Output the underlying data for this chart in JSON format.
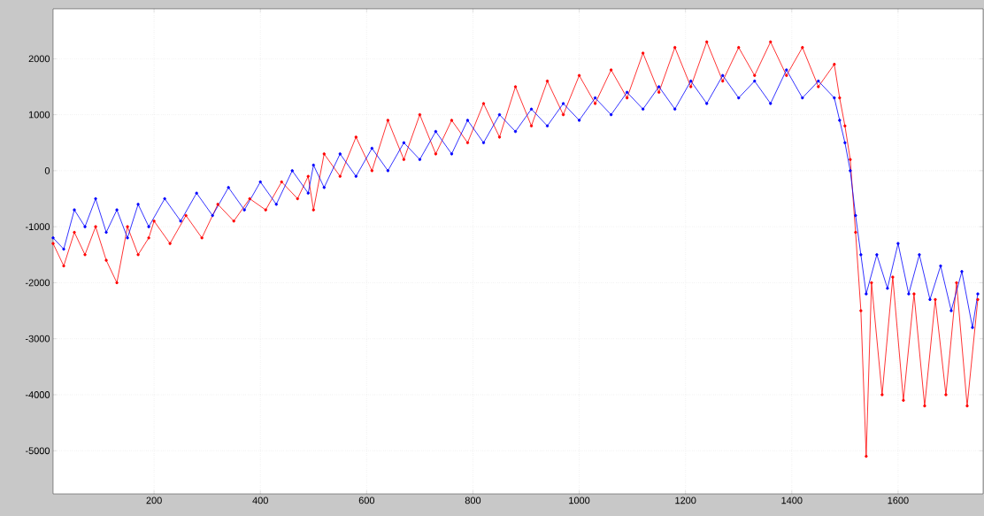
{
  "chart_data": {
    "type": "line",
    "grid": true,
    "marker": "circle",
    "line_style": "solid",
    "xlim": [
      10,
      1760
    ],
    "ylim": [
      -5770,
      2890
    ],
    "xticks": [
      200,
      400,
      600,
      800,
      1000,
      1200,
      1400,
      1600
    ],
    "yticks": [
      -5000,
      -4000,
      -3000,
      -2000,
      -1000,
      0,
      1000,
      2000
    ],
    "x": [
      10,
      30,
      50,
      70,
      90,
      110,
      130,
      150,
      170,
      190,
      200,
      230,
      260,
      290,
      320,
      350,
      380,
      410,
      440,
      470,
      490,
      500,
      520,
      550,
      580,
      610,
      640,
      670,
      700,
      730,
      760,
      790,
      820,
      850,
      880,
      910,
      940,
      970,
      1000,
      1030,
      1060,
      1090,
      1120,
      1150,
      1180,
      1210,
      1240,
      1270,
      1300,
      1330,
      1360,
      1390,
      1420,
      1450,
      1480,
      1490,
      1500,
      1510,
      1520,
      1530,
      1540,
      1550,
      1570,
      1590,
      1610,
      1630,
      1650,
      1670,
      1690,
      1710,
      1730,
      1750
    ],
    "series": [
      {
        "color": "#ff0000",
        "values": [
          -1300,
          -1700,
          -1100,
          -1500,
          -1000,
          -1600,
          -2000,
          -1000,
          -1500,
          -1200,
          -900,
          -1300,
          -800,
          -1200,
          -600,
          -900,
          -500,
          -700,
          -200,
          -500,
          -100,
          -700,
          300,
          -100,
          600,
          0,
          900,
          200,
          1000,
          300,
          900,
          500,
          1200,
          600,
          1500,
          800,
          1600,
          1000,
          1700,
          1200,
          1800,
          1300,
          2100,
          1400,
          2200,
          1500,
          2300,
          1600,
          2200,
          1700,
          2300,
          1700,
          2200,
          1500,
          1900,
          1300,
          800,
          200,
          -1100,
          -2500,
          -5100,
          -2000,
          -4000,
          -1900,
          -4100,
          -2200,
          -4200,
          -2300,
          -4000,
          -2000,
          -4200,
          -2300
        ]
      },
      {
        "color": "#0000ff",
        "x": [
          10,
          30,
          50,
          70,
          90,
          110,
          130,
          150,
          170,
          190,
          220,
          250,
          280,
          310,
          340,
          370,
          400,
          430,
          460,
          490,
          500,
          520,
          550,
          580,
          610,
          640,
          670,
          700,
          730,
          760,
          790,
          820,
          850,
          880,
          910,
          940,
          970,
          1000,
          1030,
          1060,
          1090,
          1120,
          1150,
          1180,
          1210,
          1240,
          1270,
          1300,
          1330,
          1360,
          1390,
          1420,
          1450,
          1480,
          1490,
          1500,
          1510,
          1520,
          1530,
          1540,
          1560,
          1580,
          1600,
          1620,
          1640,
          1660,
          1680,
          1700,
          1720,
          1740,
          1750
        ],
        "values": [
          -1200,
          -1400,
          -700,
          -1000,
          -500,
          -1100,
          -700,
          -1200,
          -600,
          -1000,
          -500,
          -900,
          -400,
          -800,
          -300,
          -700,
          -200,
          -600,
          0,
          -400,
          100,
          -300,
          300,
          -100,
          400,
          0,
          500,
          200,
          700,
          300,
          900,
          500,
          1000,
          700,
          1100,
          800,
          1200,
          900,
          1300,
          1000,
          1400,
          1100,
          1500,
          1100,
          1600,
          1200,
          1700,
          1300,
          1600,
          1200,
          1800,
          1300,
          1600,
          1300,
          900,
          500,
          0,
          -800,
          -1500,
          -2200,
          -1500,
          -2100,
          -1300,
          -2200,
          -1500,
          -2300,
          -1700,
          -2500,
          -1800,
          -2800,
          -2200
        ]
      }
    ]
  }
}
